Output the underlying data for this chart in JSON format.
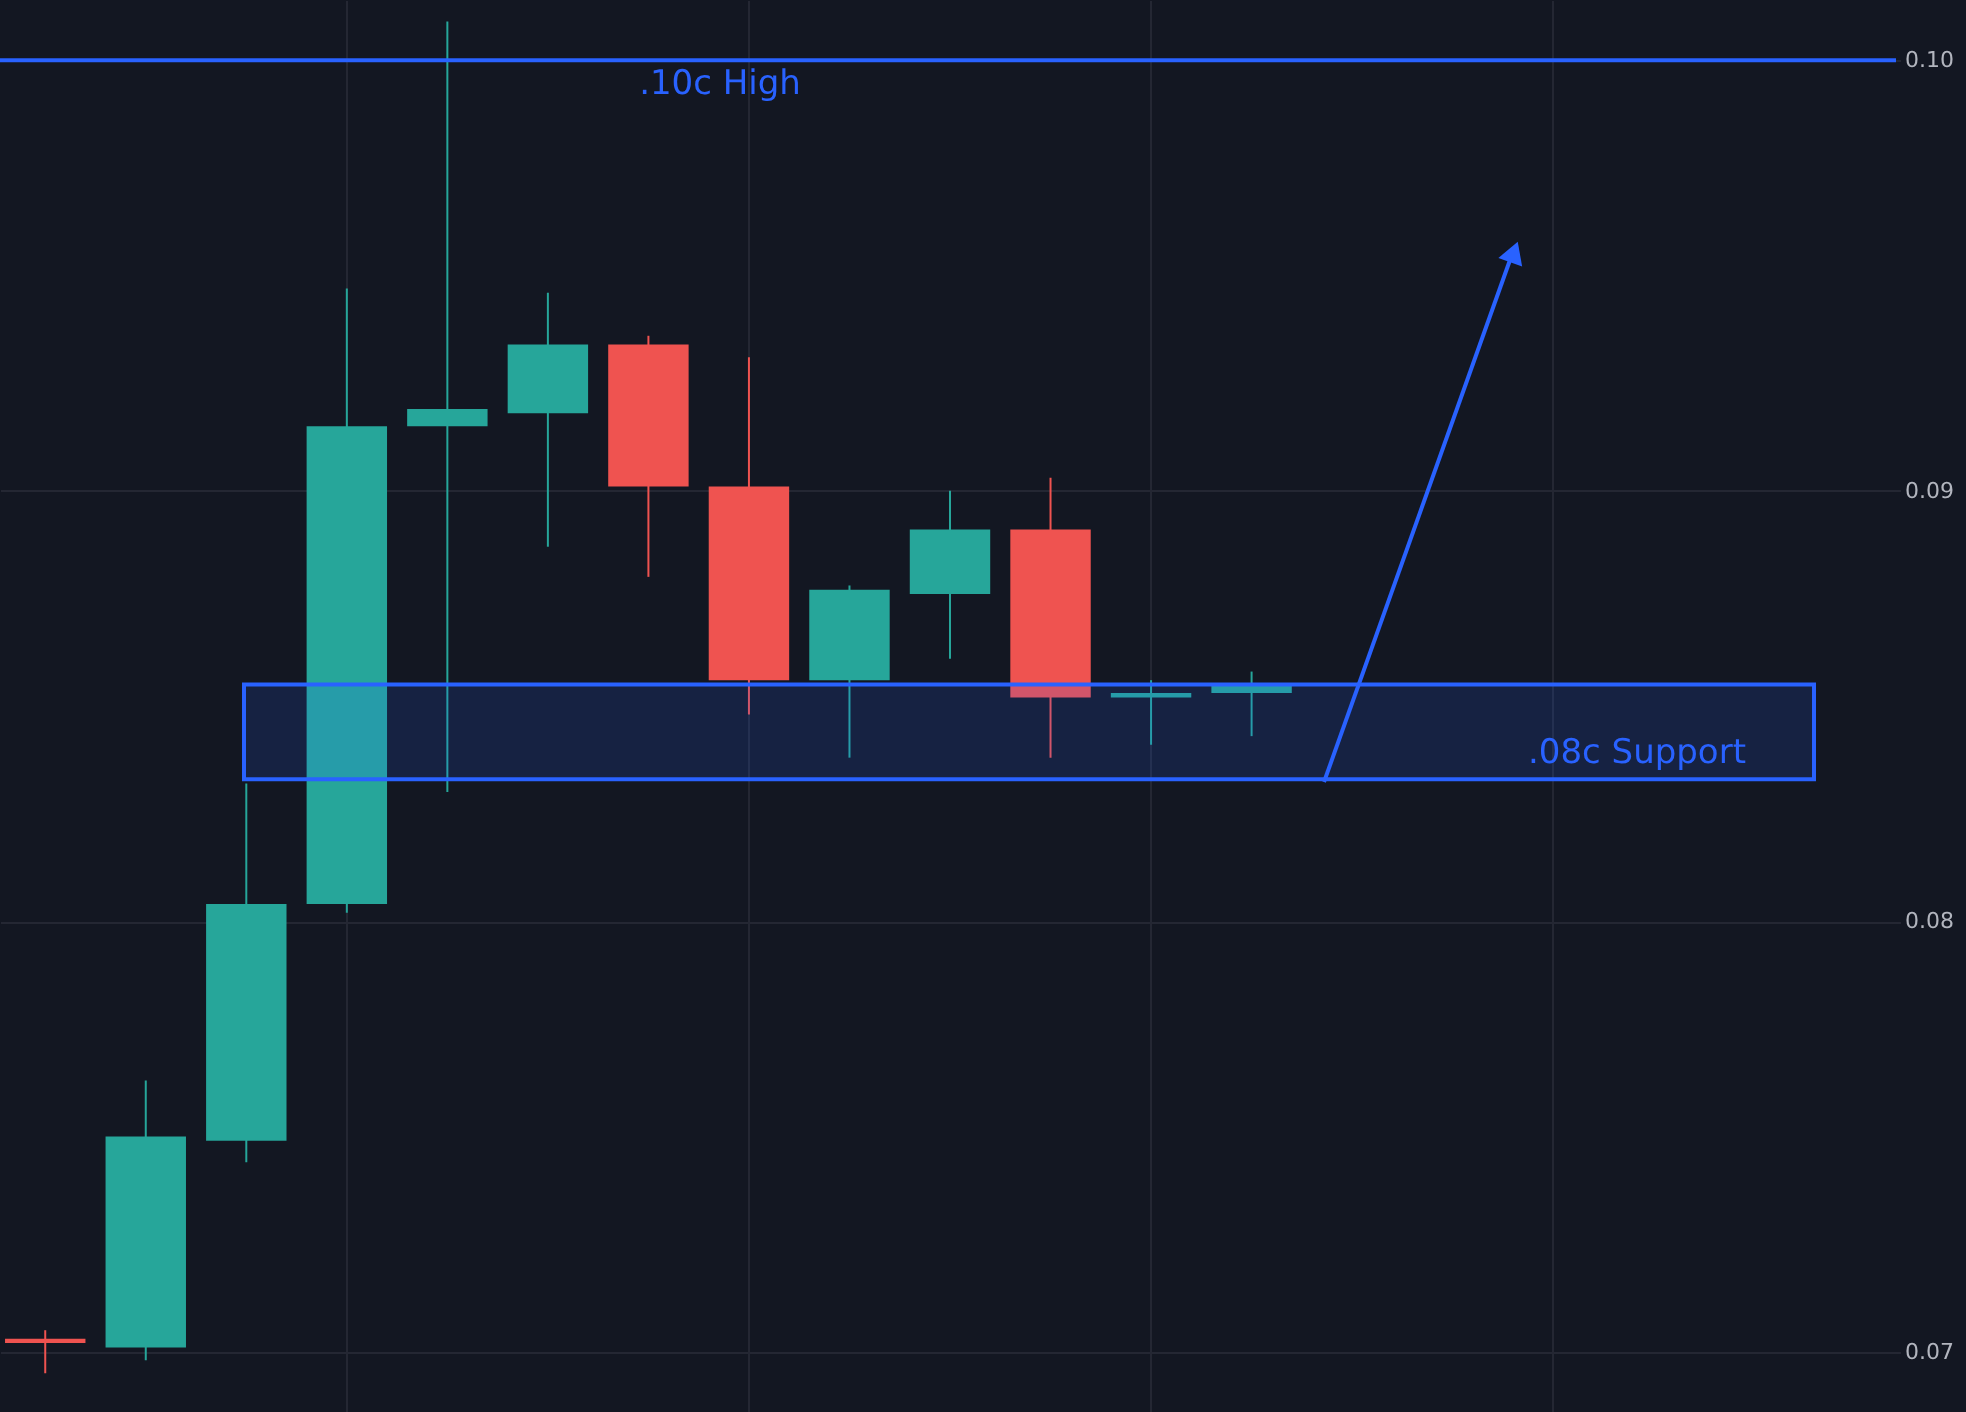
{
  "chart_data": {
    "type": "candlestick",
    "categories": [
      null,
      null,
      null,
      null,
      null,
      null,
      null,
      null,
      null,
      null,
      null,
      null,
      null,
      null,
      null,
      null,
      null,
      null,
      null
    ],
    "ohlc": [
      [
        0.0703,
        0.0705,
        0.0695,
        0.0702
      ],
      [
        0.0701,
        0.0763,
        0.0698,
        0.075
      ],
      [
        0.0749,
        0.0832,
        0.0744,
        0.0804
      ],
      [
        0.0804,
        0.0947,
        0.0802,
        0.0915
      ],
      [
        0.0915,
        0.1009,
        0.083,
        0.0919
      ],
      [
        0.0918,
        0.0946,
        0.0887,
        0.0934
      ],
      [
        0.0934,
        0.0936,
        0.088,
        0.0901
      ],
      [
        0.0901,
        0.0931,
        0.0848,
        0.0856
      ],
      [
        0.0856,
        0.0878,
        0.0838,
        0.0877
      ],
      [
        0.0876,
        0.09,
        0.0861,
        0.0891
      ],
      [
        0.0891,
        0.0903,
        0.0838,
        0.0852
      ],
      [
        0.0852,
        0.0856,
        0.0841,
        0.0853
      ],
      [
        0.0853,
        0.0858,
        0.0843,
        0.0855
      ],
      null,
      null,
      null,
      null,
      null,
      null
    ],
    "colors": [
      "#ef5350",
      "#26a69a",
      "#26a69a",
      "#26a69a",
      "#26a69a",
      "#26a69a",
      "#ef5350",
      "#ef5350",
      "#26a69a",
      "#26a69a",
      "#ef5350",
      "#26a69a",
      "#26a69a",
      null,
      null,
      null,
      null,
      null,
      null
    ],
    "ylim": [
      0.0686,
      0.1014
    ],
    "yticks": [
      {
        "value": 0.07,
        "label": "0.07"
      },
      {
        "value": 0.08,
        "label": "0.08"
      },
      {
        "value": 0.09,
        "label": "0.09"
      },
      {
        "value": 0.1,
        "label": "0.10"
      }
    ],
    "grid": true,
    "ref_lines": [
      {
        "axis": "y",
        "value": 0.1,
        "label": ".10c High",
        "color": "#2962ff"
      }
    ],
    "bands": [
      {
        "axis": "y",
        "from": 0.0833,
        "to": 0.0855,
        "label": ".08c Support",
        "color": "#2962ff"
      }
    ]
  }
}
